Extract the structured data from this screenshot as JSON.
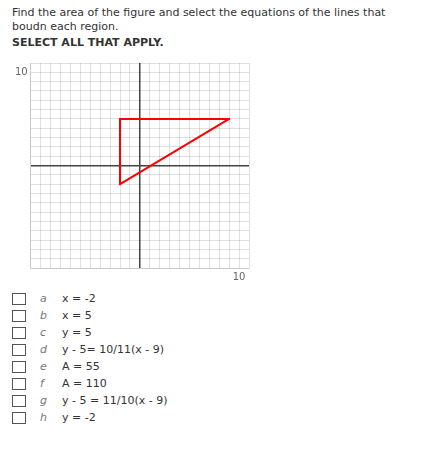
{
  "chart_data": {
    "type": "line",
    "title": "Find the area of the figure and select the equations of the lines that boudn each region.",
    "subtitle": "SELECT ALL THAT APPLY.",
    "xlim": [
      -11,
      11
    ],
    "ylim": [
      -11,
      11
    ],
    "xticks": [
      {
        "value": -11,
        "label": null
      },
      {
        "value": -10,
        "label": null
      },
      {
        "value": -9,
        "label": null
      },
      {
        "value": -8,
        "label": null
      },
      {
        "value": -7,
        "label": null
      },
      {
        "value": -6,
        "label": null
      },
      {
        "value": -5,
        "label": null
      },
      {
        "value": -4,
        "label": null
      },
      {
        "value": -3,
        "label": null
      },
      {
        "value": -2,
        "label": null
      },
      {
        "value": -1,
        "label": null
      },
      {
        "value": 0,
        "label": null
      },
      {
        "value": 1,
        "label": null
      },
      {
        "value": 2,
        "label": null
      },
      {
        "value": 3,
        "label": null
      },
      {
        "value": 4,
        "label": null
      },
      {
        "value": 5,
        "label": null
      },
      {
        "value": 6,
        "label": null
      },
      {
        "value": 7,
        "label": null
      },
      {
        "value": 8,
        "label": null
      },
      {
        "value": 9,
        "label": null
      },
      10,
      {
        "value": 11,
        "label": null
      }
    ],
    "yticks": [
      {
        "value": -11,
        "label": null
      },
      {
        "value": -10,
        "label": null
      },
      {
        "value": -9,
        "label": null
      },
      {
        "value": -8,
        "label": null
      },
      {
        "value": -7,
        "label": null
      },
      {
        "value": -6,
        "label": null
      },
      {
        "value": -5,
        "label": null
      },
      {
        "value": -4,
        "label": null
      },
      {
        "value": -3,
        "label": null
      },
      {
        "value": -2,
        "label": null
      },
      {
        "value": -1,
        "label": null
      },
      {
        "value": 0,
        "label": null
      },
      {
        "value": 1,
        "label": null
      },
      {
        "value": 2,
        "label": null
      },
      {
        "value": 3,
        "label": null
      },
      {
        "value": 4,
        "label": null
      },
      {
        "value": 5,
        "label": null
      },
      {
        "value": 6,
        "label": null
      },
      {
        "value": 7,
        "label": null
      },
      {
        "value": 8,
        "label": null
      },
      {
        "value": 9,
        "label": null
      },
      10,
      {
        "value": 11,
        "label": null
      }
    ],
    "grid": true,
    "series": [
      {
        "x": [
          -2,
          -2
        ],
        "values": [
          5,
          -2
        ],
        "color": "#ff0000"
      },
      {
        "x": [
          -2,
          9
        ],
        "values": [
          5,
          5
        ],
        "color": "#ff0000"
      },
      {
        "x": [
          -2,
          9
        ],
        "values": [
          -2,
          5
        ],
        "color": "#ff0000"
      }
    ],
    "annotations": [
      {
        "label": "a",
        "text": "x = -2"
      },
      {
        "label": "b",
        "text": "x = 5"
      },
      {
        "label": "c",
        "text": "y = 5"
      },
      {
        "label": "d",
        "text": "y - 5= 10/11(x - 9)"
      },
      {
        "label": "e",
        "text": "A = 55"
      },
      {
        "label": "f",
        "text": "A = 110"
      },
      {
        "label": "g",
        "text": "y - 5 = 11/10(x - 9)"
      },
      {
        "label": "h",
        "text": "y = -2"
      }
    ]
  }
}
